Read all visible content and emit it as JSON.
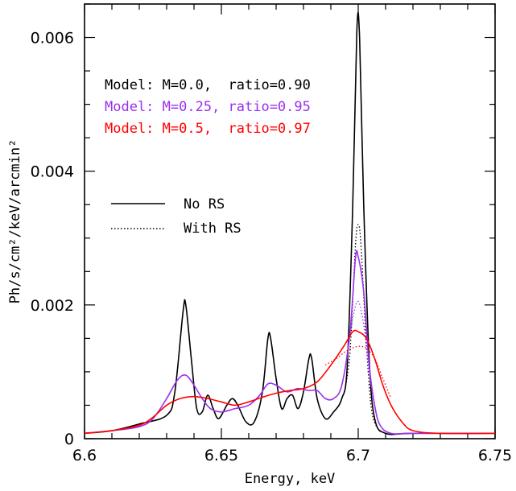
{
  "chart_data": {
    "type": "line",
    "title": "",
    "xlabel": "Energy, keV",
    "ylabel": "Ph/s/cm²/keV/arcmin²",
    "xlim": [
      6.6,
      6.75
    ],
    "ylim": [
      0,
      0.0065
    ],
    "x_ticks": [
      "6.6",
      "6.65",
      "6.7",
      "6.75"
    ],
    "y_ticks": [
      "0",
      "0.002",
      "0.004",
      "0.006"
    ],
    "grid": false,
    "annotations": [
      {
        "text": "Model: M=0.0,  ratio=0.90",
        "color": "#000000"
      },
      {
        "text": "Model: M=0.25, ratio=0.95",
        "color": "#9b30ef"
      },
      {
        "text": "Model: M=0.5,  ratio=0.97",
        "color": "#ff0000"
      }
    ],
    "legend": {
      "placement": "left-middle",
      "entries": [
        {
          "label": "No RS",
          "style": "solid"
        },
        {
          "label": "With RS",
          "style": "dotted"
        }
      ]
    },
    "series": [
      {
        "model": "M=0.0",
        "rs": "No RS",
        "color": "#000000",
        "style": "solid",
        "points": [
          [
            6.6,
            8e-05
          ],
          [
            6.61,
            0.00012
          ],
          [
            6.62,
            0.00022
          ],
          [
            6.63,
            0.00035
          ],
          [
            6.633,
            0.0007
          ],
          [
            6.636,
            0.0019
          ],
          [
            6.637,
            0.002
          ],
          [
            6.639,
            0.0012
          ],
          [
            6.641,
            0.00045
          ],
          [
            6.643,
            0.0004
          ],
          [
            6.645,
            0.00065
          ],
          [
            6.647,
            0.00045
          ],
          [
            6.649,
            0.0003
          ],
          [
            6.652,
            0.0005
          ],
          [
            6.654,
            0.0006
          ],
          [
            6.656,
            0.0005
          ],
          [
            6.659,
            0.00025
          ],
          [
            6.662,
            0.00025
          ],
          [
            6.665,
            0.0007
          ],
          [
            6.667,
            0.0015
          ],
          [
            6.668,
            0.0015
          ],
          [
            6.67,
            0.0009
          ],
          [
            6.672,
            0.00045
          ],
          [
            6.674,
            0.0006
          ],
          [
            6.676,
            0.00065
          ],
          [
            6.678,
            0.00045
          ],
          [
            6.68,
            0.0007
          ],
          [
            6.682,
            0.0012
          ],
          [
            6.683,
            0.0012
          ],
          [
            6.685,
            0.0006
          ],
          [
            6.688,
            0.0003
          ],
          [
            6.691,
            0.0004
          ],
          [
            6.694,
            0.0006
          ],
          [
            6.696,
            0.0011
          ],
          [
            6.698,
            0.0035
          ],
          [
            6.6995,
            0.0061
          ],
          [
            6.7005,
            0.006
          ],
          [
            6.702,
            0.0035
          ],
          [
            6.704,
            0.0012
          ],
          [
            6.706,
            0.0003
          ],
          [
            6.71,
            8e-05
          ],
          [
            6.72,
            8e-05
          ],
          [
            6.75,
            8e-05
          ]
        ]
      },
      {
        "model": "M=0.0",
        "rs": "With RS",
        "color": "#000000",
        "style": "dotted",
        "points": [
          [
            6.695,
            0.0007
          ],
          [
            6.697,
            0.0013
          ],
          [
            6.699,
            0.0029
          ],
          [
            6.7,
            0.0032
          ],
          [
            6.701,
            0.0029
          ],
          [
            6.703,
            0.0014
          ],
          [
            6.705,
            0.0004
          ],
          [
            6.708,
            0.0001
          ]
        ]
      },
      {
        "model": "M=0.25",
        "rs": "No RS",
        "color": "#9b30ef",
        "style": "solid",
        "points": [
          [
            6.6,
            8e-05
          ],
          [
            6.61,
            0.00012
          ],
          [
            6.62,
            0.00018
          ],
          [
            6.625,
            0.0003
          ],
          [
            6.63,
            0.0006
          ],
          [
            6.634,
            0.00088
          ],
          [
            6.637,
            0.00095
          ],
          [
            6.64,
            0.0008
          ],
          [
            6.643,
            0.0006
          ],
          [
            6.646,
            0.00045
          ],
          [
            6.65,
            0.0004
          ],
          [
            6.655,
            0.00045
          ],
          [
            6.66,
            0.0005
          ],
          [
            6.664,
            0.00065
          ],
          [
            6.667,
            0.00082
          ],
          [
            6.67,
            0.0008
          ],
          [
            6.674,
            0.0007
          ],
          [
            6.678,
            0.00075
          ],
          [
            6.682,
            0.00072
          ],
          [
            6.685,
            0.00072
          ],
          [
            6.688,
            0.0006
          ],
          [
            6.691,
            0.0006
          ],
          [
            6.694,
            0.0008
          ],
          [
            6.697,
            0.0016
          ],
          [
            6.699,
            0.0027
          ],
          [
            6.7,
            0.00272
          ],
          [
            6.702,
            0.0022
          ],
          [
            6.704,
            0.0011
          ],
          [
            6.706,
            0.0005
          ],
          [
            6.708,
            0.0002
          ],
          [
            6.712,
            8e-05
          ],
          [
            6.72,
            8e-05
          ],
          [
            6.75,
            8e-05
          ]
        ]
      },
      {
        "model": "M=0.25",
        "rs": "With RS",
        "color": "#9b30ef",
        "style": "dotted",
        "points": [
          [
            6.696,
            0.0012
          ],
          [
            6.698,
            0.0018
          ],
          [
            6.7,
            0.00205
          ],
          [
            6.702,
            0.0017
          ],
          [
            6.704,
            0.001
          ],
          [
            6.706,
            0.0005
          ]
        ]
      },
      {
        "model": "M=0.5",
        "rs": "No RS",
        "color": "#ff0000",
        "style": "solid",
        "points": [
          [
            6.6,
            8e-05
          ],
          [
            6.61,
            0.00012
          ],
          [
            6.62,
            0.0002
          ],
          [
            6.625,
            0.00032
          ],
          [
            6.63,
            0.0005
          ],
          [
            6.635,
            0.0006
          ],
          [
            6.64,
            0.00063
          ],
          [
            6.645,
            0.0006
          ],
          [
            6.65,
            0.00055
          ],
          [
            6.655,
            0.0005
          ],
          [
            6.66,
            0.00055
          ],
          [
            6.665,
            0.00062
          ],
          [
            6.67,
            0.00068
          ],
          [
            6.675,
            0.00072
          ],
          [
            6.68,
            0.00075
          ],
          [
            6.685,
            0.00085
          ],
          [
            6.69,
            0.0011
          ],
          [
            6.695,
            0.0014
          ],
          [
            6.698,
            0.0016
          ],
          [
            6.7,
            0.0016
          ],
          [
            6.703,
            0.0015
          ],
          [
            6.706,
            0.0012
          ],
          [
            6.709,
            0.0008
          ],
          [
            6.712,
            0.0005
          ],
          [
            6.716,
            0.00025
          ],
          [
            6.72,
            0.00012
          ],
          [
            6.73,
            8e-05
          ],
          [
            6.75,
            8e-05
          ]
        ]
      },
      {
        "model": "M=0.5",
        "rs": "With RS",
        "color": "#ff0000",
        "style": "dotted",
        "points": [
          [
            6.688,
            0.0011
          ],
          [
            6.692,
            0.0012
          ],
          [
            6.696,
            0.00132
          ],
          [
            6.7,
            0.00138
          ],
          [
            6.703,
            0.00135
          ],
          [
            6.706,
            0.0012
          ],
          [
            6.709,
            0.0009
          ],
          [
            6.712,
            0.0006
          ]
        ]
      }
    ]
  }
}
